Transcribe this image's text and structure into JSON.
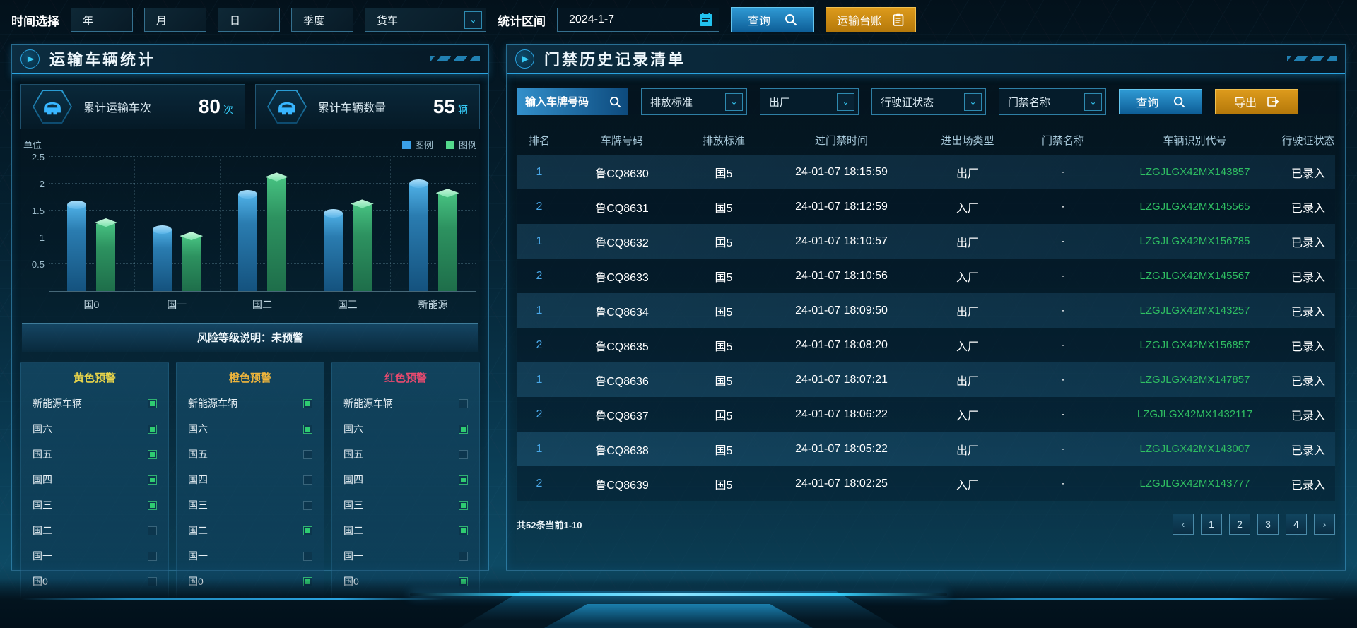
{
  "topbar": {
    "time_label": "时间选择",
    "time_buttons": [
      "年",
      "月",
      "日",
      "季度"
    ],
    "vehicle_select": "货车",
    "range_label": "统计区间",
    "date_value": "2024-1-7",
    "query_label": "查询",
    "ledger_label": "运输台账"
  },
  "left_panel": {
    "title": "运输车辆统计",
    "stats": [
      {
        "label": "累计运输车次",
        "value": "80",
        "unit": "次"
      },
      {
        "label": "累计车辆数量",
        "value": "55",
        "unit": "辆"
      }
    ],
    "risk_note": "风险等级说明：未预警",
    "warnings": [
      {
        "title": "黄色预警",
        "color": "#e8d44a",
        "items": [
          {
            "label": "新能源车辆",
            "checked": true
          },
          {
            "label": "国六",
            "checked": true
          },
          {
            "label": "国五",
            "checked": true
          },
          {
            "label": "国四",
            "checked": true
          },
          {
            "label": "国三",
            "checked": true
          },
          {
            "label": "国二",
            "checked": false
          },
          {
            "label": "国一",
            "checked": false
          },
          {
            "label": "国0",
            "checked": false
          }
        ]
      },
      {
        "title": "橙色预警",
        "color": "#f0b63c",
        "items": [
          {
            "label": "新能源车辆",
            "checked": true
          },
          {
            "label": "国六",
            "checked": true
          },
          {
            "label": "国五",
            "checked": false
          },
          {
            "label": "国四",
            "checked": false
          },
          {
            "label": "国三",
            "checked": false
          },
          {
            "label": "国二",
            "checked": true
          },
          {
            "label": "国一",
            "checked": false
          },
          {
            "label": "国0",
            "checked": true
          }
        ]
      },
      {
        "title": "红色预警",
        "color": "#e84a6f",
        "items": [
          {
            "label": "新能源车辆",
            "checked": false
          },
          {
            "label": "国六",
            "checked": true
          },
          {
            "label": "国五",
            "checked": false
          },
          {
            "label": "国四",
            "checked": true
          },
          {
            "label": "国三",
            "checked": true
          },
          {
            "label": "国二",
            "checked": true
          },
          {
            "label": "国一",
            "checked": false
          },
          {
            "label": "国0",
            "checked": true
          }
        ]
      }
    ]
  },
  "chart_data": {
    "type": "bar",
    "title": "",
    "unit_label": "单位",
    "categories": [
      "国0",
      "国一",
      "国二",
      "国三",
      "新能源"
    ],
    "series": [
      {
        "name": "图例",
        "color": "#3aa0e8",
        "values": [
          1.6,
          1.15,
          1.8,
          1.45,
          2.0
        ]
      },
      {
        "name": "图例",
        "color": "#54d98c",
        "values": [
          1.25,
          1.0,
          2.1,
          1.6,
          1.8
        ]
      }
    ],
    "y_ticks": [
      0.5,
      1,
      1.5,
      2,
      2.5
    ],
    "ylim": [
      0,
      2.5
    ],
    "grid": true,
    "legend_position": "top-right"
  },
  "right_panel": {
    "title": "门禁历史记录清单",
    "filters": {
      "plate_placeholder": "输入车牌号码",
      "dropdowns": [
        "排放标准",
        "出厂",
        "行驶证状态",
        "门禁名称"
      ],
      "query_label": "查询",
      "export_label": "导出"
    },
    "table": {
      "columns": [
        "排名",
        "车牌号码",
        "排放标准",
        "过门禁时间",
        "进出场类型",
        "门禁名称",
        "车辆识别代号",
        "行驶证状态"
      ],
      "rows": [
        [
          "1",
          "鲁CQ8630",
          "国5",
          "24-01-07 18:15:59",
          "出厂",
          "-",
          "LZGJLGX42MX143857",
          "已录入"
        ],
        [
          "2",
          "鲁CQ8631",
          "国5",
          "24-01-07 18:12:59",
          "入厂",
          "-",
          "LZGJLGX42MX145565",
          "已录入"
        ],
        [
          "1",
          "鲁CQ8632",
          "国5",
          "24-01-07 18:10:57",
          "出厂",
          "-",
          "LZGJLGX42MX156785",
          "已录入"
        ],
        [
          "2",
          "鲁CQ8633",
          "国5",
          "24-01-07 18:10:56",
          "入厂",
          "-",
          "LZGJLGX42MX145567",
          "已录入"
        ],
        [
          "1",
          "鲁CQ8634",
          "国5",
          "24-01-07 18:09:50",
          "出厂",
          "-",
          "LZGJLGX42MX143257",
          "已录入"
        ],
        [
          "2",
          "鲁CQ8635",
          "国5",
          "24-01-07 18:08:20",
          "入厂",
          "-",
          "LZGJLGX42MX156857",
          "已录入"
        ],
        [
          "1",
          "鲁CQ8636",
          "国5",
          "24-01-07 18:07:21",
          "出厂",
          "-",
          "LZGJLGX42MX147857",
          "已录入"
        ],
        [
          "2",
          "鲁CQ8637",
          "国5",
          "24-01-07 18:06:22",
          "入厂",
          "-",
          "LZGJLGX42MX1432117",
          "已录入"
        ],
        [
          "1",
          "鲁CQ8638",
          "国5",
          "24-01-07 18:05:22",
          "出厂",
          "-",
          "LZGJLGX42MX143007",
          "已录入"
        ],
        [
          "2",
          "鲁CQ8639",
          "国5",
          "24-01-07 18:02:25",
          "入厂",
          "-",
          "LZGJLGX42MX143777",
          "已录入"
        ]
      ]
    },
    "pagination": {
      "summary": "共52条当前1-10",
      "prev": "‹",
      "pages": [
        "1",
        "2",
        "3",
        "4"
      ],
      "next": "›"
    }
  },
  "colors": {
    "accent_cyan": "#35c9f5",
    "button_blue": "#1779b4",
    "button_orange": "#c98a10",
    "vin_green": "#2fbe62",
    "check_green": "#2ecc71"
  }
}
